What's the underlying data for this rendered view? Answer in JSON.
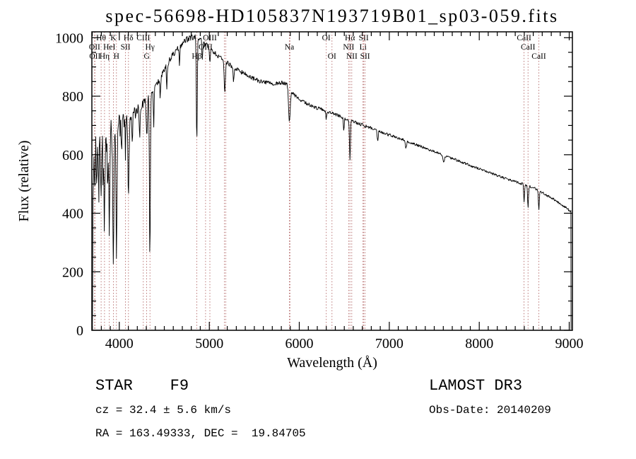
{
  "title": "spec-56698-HD105837N193719B01_sp03-059.fits",
  "footer": {
    "class_spec": "STAR    F9",
    "survey": "LAMOST DR3",
    "cz": "cz = 32.4 ± 5.6 km/s",
    "obs_date": "Obs-Date: 20140209",
    "coords": "RA = 163.49333, DEC =  19.84705"
  },
  "chart_data": {
    "type": "line",
    "title": "spec-56698-HD105837N193719B01_sp03-059.fits",
    "xlabel": "Wavelength (Å)",
    "ylabel": "Flux (relative)",
    "xlim": [
      3695,
      9035
    ],
    "ylim": [
      0,
      1020
    ],
    "x_ticks": [
      4000,
      5000,
      6000,
      7000,
      8000,
      9000
    ],
    "y_ticks": [
      0,
      200,
      400,
      600,
      800,
      1000
    ],
    "grid": false,
    "legend": "none",
    "line_color": "#000000",
    "marker_color": "#aa5555",
    "label_color": "#000000",
    "seed": 9,
    "spectral_lines": [
      {
        "w": 3726.0,
        "label": "OII",
        "row": 2
      },
      {
        "w": 3728.8,
        "label": "OII",
        "row": 3
      },
      {
        "w": 3797.9,
        "label": "Hθ",
        "row": 1
      },
      {
        "w": 3835.4,
        "label": "Hη",
        "row": 3
      },
      {
        "w": 3889.0,
        "label": "HeI",
        "row": 2
      },
      {
        "w": 3933.7,
        "label": "K",
        "row": 1
      },
      {
        "w": 3968.5,
        "label": "H",
        "row": 3
      },
      {
        "w": 4068.6,
        "label": "SII",
        "row": 2
      },
      {
        "w": 4101.7,
        "label": "Hδ",
        "row": 1
      },
      {
        "w": 4267.0,
        "label": "CIII",
        "row": 1
      },
      {
        "w": 4304.4,
        "label": "G",
        "row": 3
      },
      {
        "w": 4340.5,
        "label": "Hγ",
        "row": 2
      },
      {
        "w": 4861.3,
        "label": "Hβ",
        "row": 3
      },
      {
        "w": 4958.9,
        "label": "OIII",
        "row": 2
      },
      {
        "w": 5006.8,
        "label": "OIII",
        "row": 1
      },
      {
        "w": 5167.3,
        "label": "",
        "row": 0
      },
      {
        "w": 5183.6,
        "label": "",
        "row": 0
      },
      {
        "w": 5889.9,
        "label": "Na",
        "row": 2
      },
      {
        "w": 5895.9,
        "label": "",
        "row": 0
      },
      {
        "w": 6300.2,
        "label": "OI",
        "row": 1
      },
      {
        "w": 6363.8,
        "label": "OI",
        "row": 3
      },
      {
        "w": 6548.1,
        "label": "NII",
        "row": 2
      },
      {
        "w": 6562.8,
        "label": "Hα",
        "row": 1
      },
      {
        "w": 6583.4,
        "label": "NII",
        "row": 3
      },
      {
        "w": 6707.8,
        "label": "Li",
        "row": 2
      },
      {
        "w": 6716.4,
        "label": "SII",
        "row": 1
      },
      {
        "w": 6730.8,
        "label": "SII",
        "row": 3
      },
      {
        "w": 8498.0,
        "label": "CaII",
        "row": 1
      },
      {
        "w": 8542.1,
        "label": "CaII",
        "row": 2
      },
      {
        "w": 8662.1,
        "label": "CaII",
        "row": 3
      }
    ],
    "continuum": [
      [
        3701,
        5
      ],
      [
        3703,
        120
      ],
      [
        3706,
        320
      ],
      [
        3712,
        560
      ],
      [
        3725,
        615
      ],
      [
        3745,
        635
      ],
      [
        3780,
        650
      ],
      [
        3850,
        660
      ],
      [
        3920,
        672
      ],
      [
        3990,
        695
      ],
      [
        4050,
        712
      ],
      [
        4110,
        722
      ],
      [
        4160,
        738
      ],
      [
        4210,
        757
      ],
      [
        4260,
        773
      ],
      [
        4310,
        792
      ],
      [
        4360,
        805
      ],
      [
        4410,
        833
      ],
      [
        4460,
        868
      ],
      [
        4510,
        898
      ],
      [
        4560,
        923
      ],
      [
        4610,
        948
      ],
      [
        4660,
        968
      ],
      [
        4710,
        982
      ],
      [
        4760,
        996
      ],
      [
        4810,
        1002
      ],
      [
        4860,
        1000
      ],
      [
        4910,
        990
      ],
      [
        4960,
        975
      ],
      [
        5010,
        960
      ],
      [
        5060,
        947
      ],
      [
        5110,
        936
      ],
      [
        5160,
        926
      ],
      [
        5210,
        912
      ],
      [
        5310,
        891
      ],
      [
        5410,
        873
      ],
      [
        5510,
        857
      ],
      [
        5610,
        847
      ],
      [
        5710,
        841
      ],
      [
        5810,
        846
      ],
      [
        5860,
        844
      ],
      [
        5910,
        818
      ],
      [
        5960,
        799
      ],
      [
        6010,
        786
      ],
      [
        6110,
        771
      ],
      [
        6210,
        758
      ],
      [
        6310,
        748
      ],
      [
        6410,
        737
      ],
      [
        6510,
        723
      ],
      [
        6610,
        711
      ],
      [
        6710,
        701
      ],
      [
        6810,
        690
      ],
      [
        6910,
        678
      ],
      [
        7010,
        666
      ],
      [
        7110,
        656
      ],
      [
        7210,
        645
      ],
      [
        7310,
        633
      ],
      [
        7410,
        621
      ],
      [
        7510,
        610
      ],
      [
        7610,
        598
      ],
      [
        7710,
        586
      ],
      [
        7810,
        574
      ],
      [
        7910,
        562
      ],
      [
        8010,
        551
      ],
      [
        8110,
        539
      ],
      [
        8210,
        528
      ],
      [
        8310,
        517
      ],
      [
        8410,
        507
      ],
      [
        8510,
        497
      ],
      [
        8610,
        486
      ],
      [
        8710,
        469
      ],
      [
        8810,
        451
      ],
      [
        8910,
        431
      ],
      [
        9018,
        406
      ]
    ],
    "absorption_lines": [
      [
        3727,
        150,
        5
      ],
      [
        3750,
        170,
        4
      ],
      [
        3771,
        210,
        4
      ],
      [
        3798,
        240,
        5
      ],
      [
        3820,
        140,
        4
      ],
      [
        3835,
        290,
        5
      ],
      [
        3869,
        190,
        4
      ],
      [
        3889,
        330,
        5
      ],
      [
        3934,
        460,
        6
      ],
      [
        3969,
        420,
        6
      ],
      [
        4026,
        110,
        4
      ],
      [
        4068,
        110,
        4
      ],
      [
        4102,
        270,
        6
      ],
      [
        4144,
        90,
        4
      ],
      [
        4226,
        100,
        4
      ],
      [
        4305,
        130,
        7
      ],
      [
        4340,
        570,
        5
      ],
      [
        4383,
        110,
        4
      ],
      [
        4455,
        80,
        4
      ],
      [
        4528,
        85,
        4
      ],
      [
        4668,
        75,
        4
      ],
      [
        4861,
        370,
        5
      ],
      [
        4922,
        60,
        4
      ],
      [
        5007,
        45,
        4
      ],
      [
        5172,
        115,
        7
      ],
      [
        5270,
        55,
        5
      ],
      [
        5890,
        118,
        9
      ],
      [
        6300,
        28,
        4
      ],
      [
        6494,
        40,
        5
      ],
      [
        6563,
        138,
        5
      ],
      [
        6871,
        32,
        6
      ],
      [
        7186,
        25,
        6
      ],
      [
        7605,
        28,
        7
      ],
      [
        8498,
        56,
        5
      ],
      [
        8542,
        72,
        5
      ],
      [
        8662,
        63,
        5
      ]
    ],
    "noise": [
      [
        3700,
        60
      ],
      [
        3900,
        55
      ],
      [
        4000,
        40
      ],
      [
        4100,
        30
      ],
      [
        4200,
        20
      ],
      [
        4350,
        15
      ],
      [
        4600,
        12
      ],
      [
        5000,
        10
      ],
      [
        5500,
        8
      ],
      [
        6000,
        7
      ],
      [
        6500,
        6
      ],
      [
        7000,
        5
      ],
      [
        7600,
        4.5
      ],
      [
        8400,
        4.5
      ],
      [
        9020,
        4.5
      ]
    ]
  }
}
